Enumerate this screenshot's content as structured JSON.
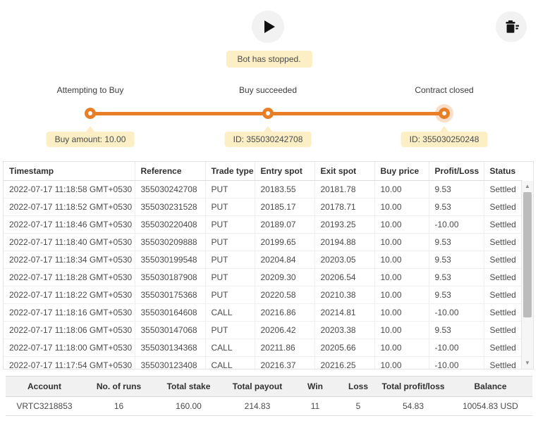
{
  "toolbar": {
    "run_button_icon": "play-icon",
    "clear_button_icon": "trash-icon"
  },
  "notification": {
    "text": "Bot has stopped."
  },
  "timeline": {
    "stages": [
      {
        "label": "Attempting to Buy",
        "tooltip": "Buy amount: 10.00",
        "active": false
      },
      {
        "label": "Buy succeeded",
        "tooltip": "ID: 355030242708",
        "active": false
      },
      {
        "label": "Contract closed",
        "tooltip": "ID: 355030250248",
        "active": true
      }
    ]
  },
  "transactions": {
    "columns": [
      "Timestamp",
      "Reference",
      "Trade type",
      "Entry spot",
      "Exit spot",
      "Buy price",
      "Profit/Loss",
      "Status"
    ],
    "rows": [
      {
        "timestamp": "2022-07-17 11:18:58 GMT+0530",
        "reference": "355030242708",
        "trade_type": "PUT",
        "entry_spot": "20183.55",
        "exit_spot": "20181.78",
        "buy_price": "10.00",
        "profit_loss": "9.53",
        "status": "Settled"
      },
      {
        "timestamp": "2022-07-17 11:18:52 GMT+0530",
        "reference": "355030231528",
        "trade_type": "PUT",
        "entry_spot": "20185.17",
        "exit_spot": "20178.71",
        "buy_price": "10.00",
        "profit_loss": "9.53",
        "status": "Settled"
      },
      {
        "timestamp": "2022-07-17 11:18:46 GMT+0530",
        "reference": "355030220408",
        "trade_type": "PUT",
        "entry_spot": "20189.07",
        "exit_spot": "20193.25",
        "buy_price": "10.00",
        "profit_loss": "-10.00",
        "status": "Settled"
      },
      {
        "timestamp": "2022-07-17 11:18:40 GMT+0530",
        "reference": "355030209888",
        "trade_type": "PUT",
        "entry_spot": "20199.65",
        "exit_spot": "20194.88",
        "buy_price": "10.00",
        "profit_loss": "9.53",
        "status": "Settled"
      },
      {
        "timestamp": "2022-07-17 11:18:34 GMT+0530",
        "reference": "355030199548",
        "trade_type": "PUT",
        "entry_spot": "20204.84",
        "exit_spot": "20203.05",
        "buy_price": "10.00",
        "profit_loss": "9.53",
        "status": "Settled"
      },
      {
        "timestamp": "2022-07-17 11:18:28 GMT+0530",
        "reference": "355030187908",
        "trade_type": "PUT",
        "entry_spot": "20209.30",
        "exit_spot": "20206.54",
        "buy_price": "10.00",
        "profit_loss": "9.53",
        "status": "Settled"
      },
      {
        "timestamp": "2022-07-17 11:18:22 GMT+0530",
        "reference": "355030175368",
        "trade_type": "PUT",
        "entry_spot": "20220.58",
        "exit_spot": "20210.38",
        "buy_price": "10.00",
        "profit_loss": "9.53",
        "status": "Settled"
      },
      {
        "timestamp": "2022-07-17 11:18:16 GMT+0530",
        "reference": "355030164608",
        "trade_type": "CALL",
        "entry_spot": "20216.86",
        "exit_spot": "20214.81",
        "buy_price": "10.00",
        "profit_loss": "-10.00",
        "status": "Settled"
      },
      {
        "timestamp": "2022-07-17 11:18:06 GMT+0530",
        "reference": "355030147068",
        "trade_type": "PUT",
        "entry_spot": "20206.42",
        "exit_spot": "20203.38",
        "buy_price": "10.00",
        "profit_loss": "9.53",
        "status": "Settled"
      },
      {
        "timestamp": "2022-07-17 11:18:00 GMT+0530",
        "reference": "355030134368",
        "trade_type": "CALL",
        "entry_spot": "20211.86",
        "exit_spot": "20205.66",
        "buy_price": "10.00",
        "profit_loss": "-10.00",
        "status": "Settled"
      },
      {
        "timestamp": "2022-07-17 11:17:54 GMT+0530",
        "reference": "355030123408",
        "trade_type": "CALL",
        "entry_spot": "20216.37",
        "exit_spot": "20216.25",
        "buy_price": "10.00",
        "profit_loss": "-10.00",
        "status": "Settled"
      }
    ]
  },
  "summary": {
    "columns": [
      "Account",
      "No. of runs",
      "Total stake",
      "Total payout",
      "Win",
      "Loss",
      "Total profit/loss",
      "Balance"
    ],
    "account": "VRTC3218853",
    "runs": "16",
    "total_stake": "160.00",
    "total_payout": "214.83",
    "win": "11",
    "loss": "5",
    "total_profit_loss": "54.83",
    "balance": "10054.83 USD"
  },
  "colors": {
    "accent_orange": "#e87f27",
    "tooltip_beige": "#fcefc6",
    "profit_green": "#2e8b57",
    "loss_red": "#e8433f"
  }
}
